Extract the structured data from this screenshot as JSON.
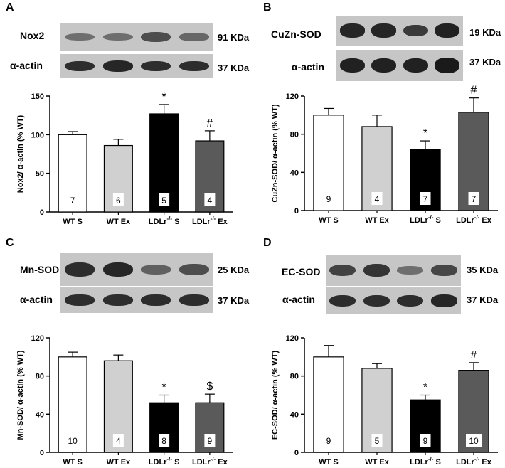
{
  "panels": [
    {
      "letter": "A",
      "blot": {
        "protein": "Nox2",
        "protein_size": "91 KDa",
        "control": "α-actin",
        "control_size": "37 KDa",
        "protein_intensity": [
          0.35,
          0.35,
          0.6,
          0.4
        ],
        "control_intensity": [
          0.85,
          0.9,
          0.85,
          0.85
        ]
      }
    },
    {
      "letter": "B",
      "blot": {
        "protein": "CuZn-SOD",
        "protein_size": "19 KDa",
        "control": "α-actin",
        "control_size": "37 KDa",
        "protein_intensity": [
          0.9,
          0.9,
          0.75,
          0.95
        ],
        "control_intensity": [
          0.95,
          0.95,
          0.95,
          1.0
        ]
      }
    },
    {
      "letter": "C",
      "blot": {
        "protein": "Mn-SOD",
        "protein_size": "25 KDa",
        "control": "α-actin",
        "control_size": "37 KDa",
        "protein_intensity": [
          0.85,
          0.9,
          0.45,
          0.6
        ],
        "control_intensity": [
          0.85,
          0.85,
          0.85,
          0.85
        ]
      }
    },
    {
      "letter": "D",
      "blot": {
        "protein": "EC-SOD",
        "protein_size": "35 KDa",
        "control": "α-actin",
        "control_size": "37 KDa",
        "protein_intensity": [
          0.7,
          0.8,
          0.35,
          0.65
        ],
        "control_intensity": [
          0.85,
          0.85,
          0.85,
          0.9
        ]
      }
    }
  ],
  "chart_data": [
    {
      "type": "bar",
      "ylabel": "Nox2/ α-actin (% WT)",
      "ylim": [
        0,
        150
      ],
      "yticks": [
        0,
        50,
        100,
        150
      ],
      "categories": [
        {
          "base": "WT S",
          "sup": "",
          "suffix": ""
        },
        {
          "base": "WT Ex",
          "sup": "",
          "suffix": ""
        },
        {
          "base": "LDLr",
          "sup": "-/-",
          "suffix": " S"
        },
        {
          "base": "LDLr",
          "sup": "-/-",
          "suffix": " Ex"
        }
      ],
      "values": [
        100,
        86,
        127,
        92
      ],
      "errors": [
        4,
        8,
        12,
        13
      ],
      "n": [
        "7",
        "6",
        "5",
        "4"
      ],
      "annotations": [
        "",
        "",
        "*",
        "#"
      ],
      "colors": [
        "#ffffff",
        "#d0d0d0",
        "#000000",
        "#5a5a5a"
      ]
    },
    {
      "type": "bar",
      "ylabel": "CuZn-SOD/ α-actin (% WT)",
      "ylim": [
        0,
        120
      ],
      "yticks": [
        0,
        40,
        80,
        120
      ],
      "categories": [
        {
          "base": "WT S",
          "sup": "",
          "suffix": ""
        },
        {
          "base": "WT Ex",
          "sup": "",
          "suffix": ""
        },
        {
          "base": "LDLr",
          "sup": "-/-",
          "suffix": " S"
        },
        {
          "base": "LDLr",
          "sup": "-/-",
          "suffix": " Ex"
        }
      ],
      "values": [
        100,
        88,
        64,
        103
      ],
      "errors": [
        7,
        12,
        9,
        15
      ],
      "n": [
        "9",
        "4",
        "7",
        "7"
      ],
      "annotations": [
        "",
        "",
        "*",
        "#"
      ],
      "colors": [
        "#ffffff",
        "#d0d0d0",
        "#000000",
        "#5a5a5a"
      ]
    },
    {
      "type": "bar",
      "ylabel": "Mn-SOD/ α-actin (% WT)",
      "ylim": [
        0,
        120
      ],
      "yticks": [
        0,
        40,
        80,
        120
      ],
      "categories": [
        {
          "base": "WT S",
          "sup": "",
          "suffix": ""
        },
        {
          "base": "WT Ex",
          "sup": "",
          "suffix": ""
        },
        {
          "base": "LDLr",
          "sup": "-/-",
          "suffix": " S"
        },
        {
          "base": "LDLr",
          "sup": "-/-",
          "suffix": " Ex"
        }
      ],
      "values": [
        100,
        96,
        52,
        52
      ],
      "errors": [
        5,
        6,
        8,
        9
      ],
      "n": [
        "10",
        "4",
        "8",
        "9"
      ],
      "annotations": [
        "",
        "",
        "*",
        "$"
      ],
      "colors": [
        "#ffffff",
        "#d0d0d0",
        "#000000",
        "#5a5a5a"
      ]
    },
    {
      "type": "bar",
      "ylabel": "EC-SOD/ α-actin (% WT)",
      "ylim": [
        0,
        120
      ],
      "yticks": [
        0,
        40,
        80,
        120
      ],
      "categories": [
        {
          "base": "WT S",
          "sup": "",
          "suffix": ""
        },
        {
          "base": "WT Ex",
          "sup": "",
          "suffix": ""
        },
        {
          "base": "LDLr",
          "sup": "-/-",
          "suffix": " S"
        },
        {
          "base": "LDLr",
          "sup": "-/-",
          "suffix": " Ex"
        }
      ],
      "values": [
        100,
        88,
        55,
        86
      ],
      "errors": [
        12,
        5,
        5,
        8
      ],
      "n": [
        "9",
        "5",
        "9",
        "10"
      ],
      "annotations": [
        "",
        "",
        "*",
        "#"
      ],
      "colors": [
        "#ffffff",
        "#d0d0d0",
        "#000000",
        "#5a5a5a"
      ]
    }
  ]
}
